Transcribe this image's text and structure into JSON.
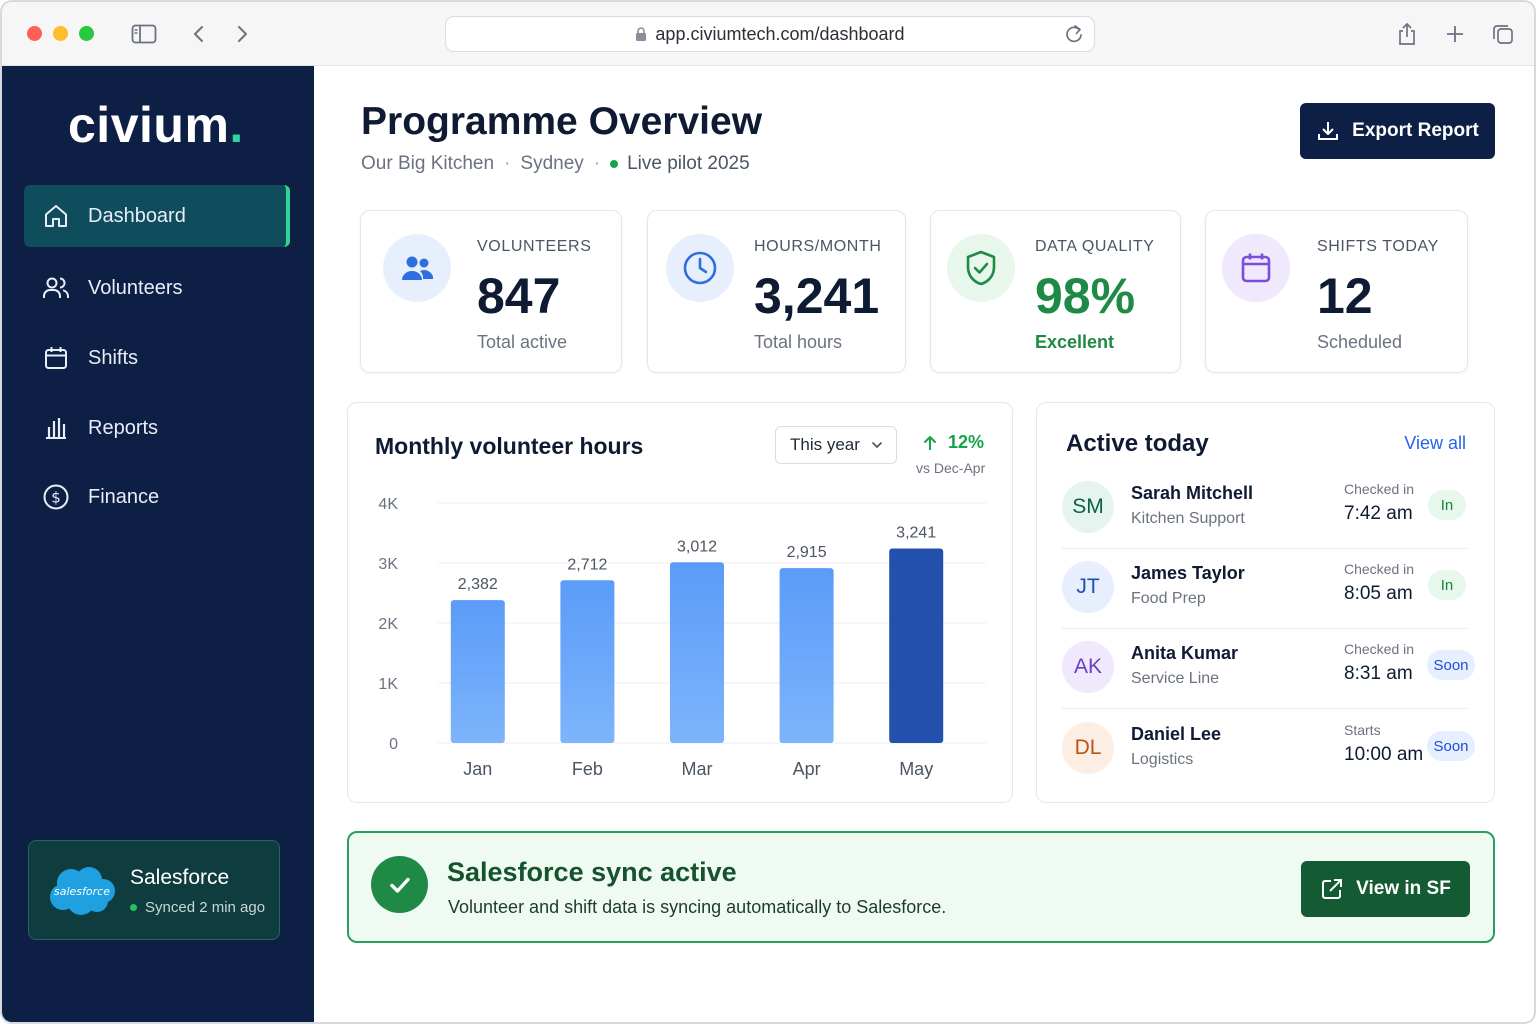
{
  "browser": {
    "url": "app.civiumtech.com/dashboard"
  },
  "sidebar": {
    "logo_text": "civium",
    "logo_dot": ".",
    "items": [
      {
        "label": "Dashboard",
        "icon": "home-icon",
        "active": true
      },
      {
        "label": "Volunteers",
        "icon": "users-icon",
        "active": false
      },
      {
        "label": "Shifts",
        "icon": "calendar-icon",
        "active": false
      },
      {
        "label": "Reports",
        "icon": "bar-chart-icon",
        "active": false
      },
      {
        "label": "Finance",
        "icon": "dollar-circle-icon",
        "active": false
      }
    ],
    "integration": {
      "logo_text": "salesforce",
      "title": "Salesforce",
      "status": "Synced 2 min ago"
    }
  },
  "header": {
    "title": "Programme Overview",
    "org": "Our Big Kitchen",
    "city": "Sydney",
    "separator": "·",
    "status": "Live pilot 2025",
    "export_label": "Export Report"
  },
  "stats": [
    {
      "label": "VOLUNTEERS",
      "value": "847",
      "note": "Total active",
      "icon": "users-icon"
    },
    {
      "label": "HOURS/MONTH",
      "value": "3,241",
      "note": "Total hours",
      "icon": "clock-icon"
    },
    {
      "label": "DATA QUALITY",
      "value": "98%",
      "note": "Excellent",
      "icon": "shield-check-icon"
    },
    {
      "label": "SHIFTS TODAY",
      "value": "12",
      "note": "Scheduled",
      "icon": "calendar-icon"
    }
  ],
  "chart_card": {
    "title": "Monthly volunteer hours",
    "period": "This year",
    "trend_value": "12%",
    "trend_sub": "vs Dec-Apr"
  },
  "chart_data": {
    "type": "bar",
    "title": "Monthly volunteer hours",
    "xlabel": "",
    "ylabel": "",
    "categories": [
      "Jan",
      "Feb",
      "Mar",
      "Apr",
      "May"
    ],
    "values": [
      2382,
      2712,
      3012,
      2915,
      3241
    ],
    "value_labels": [
      "2,382",
      "2,712",
      "3,012",
      "2,915",
      "3,241"
    ],
    "highlight_index": 4,
    "ylim": [
      0,
      4000
    ],
    "yticks": [
      0,
      1000,
      2000,
      3000,
      4000
    ],
    "ytick_labels": [
      "0",
      "1K",
      "2K",
      "3K",
      "4K"
    ],
    "grid": true,
    "colors": {
      "bar": "#5b9cf8",
      "highlight": "#2451ad"
    }
  },
  "active_today": {
    "title": "Active today",
    "view_all": "View all",
    "people": [
      {
        "initials": "SM",
        "name": "Sarah Mitchell",
        "role": "Kitchen Support",
        "time_label": "Checked in",
        "time": "7:42 am",
        "badge": "In",
        "badge_type": "in",
        "avatar_bg": "#e5f5ee",
        "avatar_fg": "#0f5e4a"
      },
      {
        "initials": "JT",
        "name": "James Taylor",
        "role": "Food Prep",
        "time_label": "Checked in",
        "time": "8:05 am",
        "badge": "In",
        "badge_type": "in",
        "avatar_bg": "#e7effd",
        "avatar_fg": "#1e4fb5"
      },
      {
        "initials": "AK",
        "name": "Anita Kumar",
        "role": "Service Line",
        "time_label": "Checked in",
        "time": "8:31 am",
        "badge": "Soon",
        "badge_type": "soon",
        "avatar_bg": "#efe9fb",
        "avatar_fg": "#6b3fc9"
      },
      {
        "initials": "DL",
        "name": "Daniel Lee",
        "role": "Logistics",
        "time_label": "Starts",
        "time": "10:00 am",
        "badge": "Soon",
        "badge_type": "soon",
        "avatar_bg": "#fdeee3",
        "avatar_fg": "#b5541b"
      }
    ]
  },
  "sync_banner": {
    "title": "Salesforce sync active",
    "description": "Volunteer and shift data is syncing automatically to Salesforce.",
    "button_label": "View in SF"
  }
}
